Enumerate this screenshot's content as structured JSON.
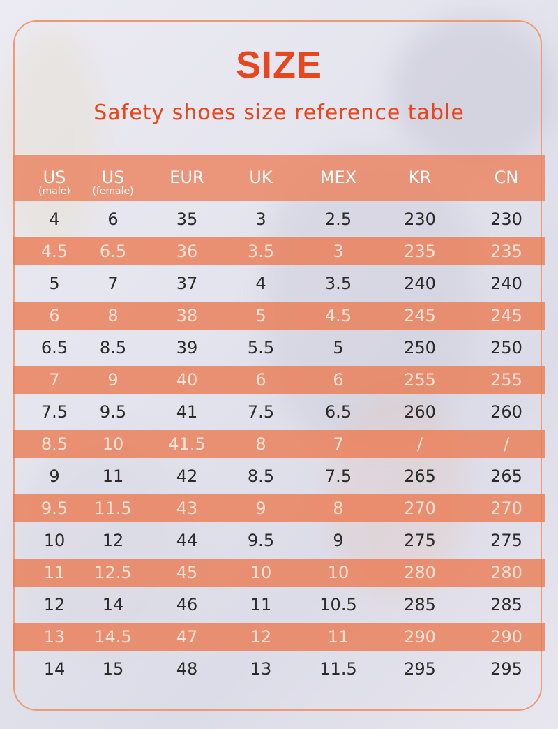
{
  "title": "SIZE",
  "subtitle": "Safety shoes size reference table",
  "colors": {
    "accent": "#e8461c",
    "band": "#ec8460",
    "frame": "#ee9a72"
  },
  "table": {
    "headers": [
      {
        "label": "US",
        "sub": "(male)"
      },
      {
        "label": "US",
        "sub": "(female)"
      },
      {
        "label": "EUR",
        "sub": ""
      },
      {
        "label": "UK",
        "sub": ""
      },
      {
        "label": "MEX",
        "sub": ""
      },
      {
        "label": "KR",
        "sub": ""
      },
      {
        "label": "CN",
        "sub": ""
      }
    ],
    "rows": [
      [
        "4",
        "6",
        "35",
        "3",
        "2.5",
        "230",
        "230"
      ],
      [
        "4.5",
        "6.5",
        "36",
        "3.5",
        "3",
        "235",
        "235"
      ],
      [
        "5",
        "7",
        "37",
        "4",
        "3.5",
        "240",
        "240"
      ],
      [
        "6",
        "8",
        "38",
        "5",
        "4.5",
        "245",
        "245"
      ],
      [
        "6.5",
        "8.5",
        "39",
        "5.5",
        "5",
        "250",
        "250"
      ],
      [
        "7",
        "9",
        "40",
        "6",
        "6",
        "255",
        "255"
      ],
      [
        "7.5",
        "9.5",
        "41",
        "7.5",
        "6.5",
        "260",
        "260"
      ],
      [
        "8.5",
        "10",
        "41.5",
        "8",
        "7",
        "/",
        "/"
      ],
      [
        "9",
        "11",
        "42",
        "8.5",
        "7.5",
        "265",
        "265"
      ],
      [
        "9.5",
        "11.5",
        "43",
        "9",
        "8",
        "270",
        "270"
      ],
      [
        "10",
        "12",
        "44",
        "9.5",
        "9",
        "275",
        "275"
      ],
      [
        "11",
        "12.5",
        "45",
        "10",
        "10",
        "280",
        "280"
      ],
      [
        "12",
        "14",
        "46",
        "11",
        "10.5",
        "285",
        "285"
      ],
      [
        "13",
        "14.5",
        "47",
        "12",
        "11",
        "290",
        "290"
      ],
      [
        "14",
        "15",
        "48",
        "13",
        "11.5",
        "295",
        "295"
      ]
    ]
  }
}
